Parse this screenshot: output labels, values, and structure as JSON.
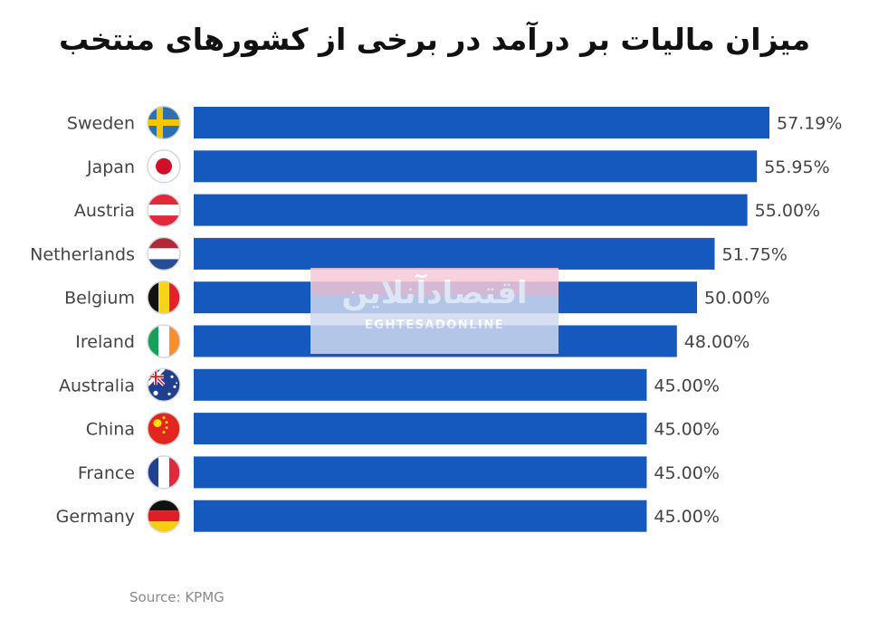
{
  "chart_data": {
    "type": "bar",
    "orientation": "horizontal",
    "title": "میزان مالیات بر درآمد در برخی از کشورهای منتخب",
    "categories": [
      "Sweden",
      "Japan",
      "Austria",
      "Netherlands",
      "Belgium",
      "Ireland",
      "Australia",
      "China",
      "France",
      "Germany"
    ],
    "values": [
      57.19,
      55.95,
      55.0,
      51.75,
      50.0,
      48.0,
      45.0,
      45.0,
      45.0,
      45.0
    ],
    "value_labels": [
      "57.19%",
      "55.95%",
      "55.00%",
      "51.75%",
      "50.00%",
      "48.00%",
      "45.00%",
      "45.00%",
      "45.00%",
      "45.00%"
    ],
    "flag_icons": [
      "sweden-flag-icon",
      "japan-flag-icon",
      "austria-flag-icon",
      "netherlands-flag-icon",
      "belgium-flag-icon",
      "ireland-flag-icon",
      "australia-flag-icon",
      "china-flag-icon",
      "france-flag-icon",
      "germany-flag-icon"
    ],
    "bar_color": "#1559bf",
    "xlim": [
      0,
      57.19
    ],
    "grid": false,
    "source": "Source: KPMG"
  },
  "watermark": {
    "logo_text": "اقتصادآنلاین",
    "sub_text": "EGHTESADONLINE"
  }
}
